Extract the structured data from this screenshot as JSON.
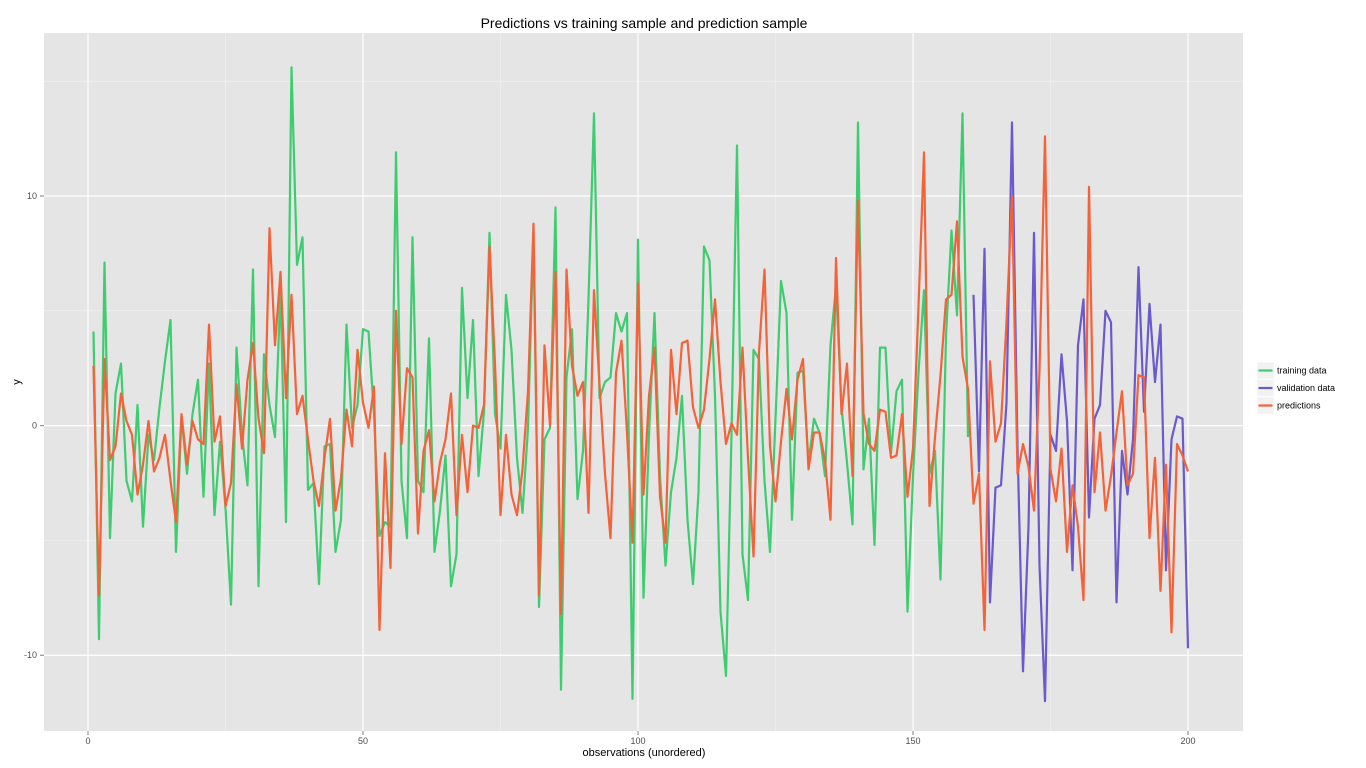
{
  "chart_data": {
    "type": "line",
    "title": "Predictions vs training sample and prediction sample",
    "xlabel": "observations (unordered)",
    "ylabel": "y",
    "xlim": [
      -8,
      210
    ],
    "ylim": [
      -13.3,
      17.1
    ],
    "x_ticks": [
      0,
      50,
      100,
      150,
      200
    ],
    "x_tick_labels": [
      "0",
      "50",
      "100",
      "150",
      "200"
    ],
    "y_ticks": [
      -10,
      0,
      10
    ],
    "y_tick_labels": [
      "-10",
      "0",
      "10"
    ],
    "grid": true,
    "legend_position": "right",
    "series": [
      {
        "name": "training data",
        "color": "#3ecc70",
        "x": [
          1,
          2,
          3,
          4,
          5,
          6,
          7,
          8,
          9,
          10,
          11,
          12,
          13,
          14,
          15,
          16,
          17,
          18,
          19,
          20,
          21,
          22,
          23,
          24,
          25,
          26,
          27,
          28,
          29,
          30,
          31,
          32,
          33,
          34,
          35,
          36,
          37,
          38,
          39,
          40,
          41,
          42,
          43,
          44,
          45,
          46,
          47,
          48,
          49,
          50,
          51,
          52,
          53,
          54,
          55,
          56,
          57,
          58,
          59,
          60,
          61,
          62,
          63,
          64,
          65,
          66,
          67,
          68,
          69,
          70,
          71,
          72,
          73,
          74,
          75,
          76,
          77,
          78,
          79,
          80,
          81,
          82,
          83,
          84,
          85,
          86,
          87,
          88,
          89,
          90,
          91,
          92,
          93,
          94,
          95,
          96,
          97,
          98,
          99,
          100,
          101,
          102,
          103,
          104,
          105,
          106,
          107,
          108,
          109,
          110,
          111,
          112,
          113,
          114,
          115,
          116,
          117,
          118,
          119,
          120,
          121,
          122,
          123,
          124,
          125,
          126,
          127,
          128,
          129,
          130,
          131,
          132,
          133,
          134,
          135,
          136,
          137,
          138,
          139,
          140,
          141,
          142,
          143,
          144,
          145,
          146,
          147,
          148,
          149,
          150,
          151,
          152,
          153,
          154,
          155,
          156,
          157,
          158,
          159,
          160
        ],
        "values": [
          4.1,
          -9.3,
          7.1,
          -4.9,
          1.4,
          2.7,
          -2.4,
          -3.3,
          0.9,
          -4.4,
          -0.4,
          -1.5,
          0.8,
          2.8,
          4.6,
          -5.5,
          0.4,
          -2.1,
          0.5,
          2.0,
          -3.1,
          2.7,
          -3.9,
          -0.7,
          -3.6,
          -7.8,
          3.4,
          -0.4,
          -2.6,
          6.8,
          -7.0,
          3.1,
          0.9,
          -0.5,
          5.9,
          -4.2,
          15.6,
          7.0,
          8.2,
          -2.8,
          -2.5,
          -6.9,
          -0.9,
          -0.8,
          -5.5,
          -4.1,
          4.4,
          -0.1,
          0.9,
          4.2,
          4.1,
          0.5,
          -4.8,
          -4.2,
          -4.4,
          11.9,
          -2.4,
          -4.9,
          8.2,
          -2.4,
          -2.9,
          3.8,
          -5.5,
          -3.7,
          -1.3,
          -7.0,
          -5.6,
          6.0,
          1.2,
          4.6,
          -2.2,
          0.6,
          8.4,
          0.5,
          -1.0,
          5.7,
          3.3,
          -1.4,
          -3.8,
          -0.1,
          8.4,
          -7.9,
          -0.6,
          -0.1,
          9.5,
          -11.5,
          2.1,
          4.2,
          -3.2,
          -1.1,
          5.5,
          13.6,
          1.2,
          1.9,
          2.1,
          4.9,
          4.1,
          4.9,
          -11.9,
          8.1,
          -7.5,
          -0.4,
          4.9,
          -2.2,
          -6.1,
          -2.9,
          -1.4,
          1.3,
          -4.1,
          -6.9,
          -2.9,
          7.8,
          7.2,
          1.3,
          -8.1,
          -10.9,
          -0.4,
          12.2,
          -5.6,
          -7.6,
          3.3,
          2.9,
          -2.4,
          -5.5,
          0.3,
          6.3,
          4.9,
          -4.1,
          2.3,
          2.4,
          -1.6,
          0.3,
          -0.3,
          -2.2,
          3.5,
          6.1,
          0.8,
          -1.6,
          -4.3,
          13.2,
          -1.9,
          0.3,
          -5.2,
          3.4,
          3.4,
          -1.2,
          1.5,
          2.0,
          -8.1,
          -2.2,
          2.3,
          5.9,
          -2.1,
          -1.1,
          -6.7,
          3.9,
          8.5,
          4.8,
          13.6,
          -0.5
        ]
      },
      {
        "name": "validation data",
        "color": "#6a5acd",
        "x": [
          161,
          162,
          163,
          164,
          165,
          166,
          167,
          168,
          169,
          170,
          171,
          172,
          173,
          174,
          175,
          176,
          177,
          178,
          179,
          180,
          181,
          182,
          183,
          184,
          185,
          186,
          187,
          188,
          189,
          190,
          191,
          192,
          193,
          194,
          195,
          196,
          197,
          198,
          199,
          200
        ],
        "values": [
          5.7,
          -2.0,
          7.7,
          -7.7,
          -2.7,
          -2.6,
          1.0,
          13.2,
          -0.9,
          -10.7,
          -4.4,
          8.4,
          -6.1,
          -12.0,
          -0.4,
          -1.1,
          3.1,
          0.2,
          -6.3,
          3.5,
          5.5,
          -4.0,
          0.3,
          0.9,
          5.0,
          4.5,
          -7.7,
          -1.1,
          -3.0,
          -0.6,
          6.9,
          0.6,
          5.3,
          1.9,
          4.4,
          -6.3,
          -0.6,
          0.4,
          0.3,
          -9.7
        ]
      },
      {
        "name": "predictions",
        "color": "#f4623a",
        "x": [
          1,
          2,
          3,
          4,
          5,
          6,
          7,
          8,
          9,
          10,
          11,
          12,
          13,
          14,
          15,
          16,
          17,
          18,
          19,
          20,
          21,
          22,
          23,
          24,
          25,
          26,
          27,
          28,
          29,
          30,
          31,
          32,
          33,
          34,
          35,
          36,
          37,
          38,
          39,
          40,
          41,
          42,
          43,
          44,
          45,
          46,
          47,
          48,
          49,
          50,
          51,
          52,
          53,
          54,
          55,
          56,
          57,
          58,
          59,
          60,
          61,
          62,
          63,
          64,
          65,
          66,
          67,
          68,
          69,
          70,
          71,
          72,
          73,
          74,
          75,
          76,
          77,
          78,
          79,
          80,
          81,
          82,
          83,
          84,
          85,
          86,
          87,
          88,
          89,
          90,
          91,
          92,
          93,
          94,
          95,
          96,
          97,
          98,
          99,
          100,
          101,
          102,
          103,
          104,
          105,
          106,
          107,
          108,
          109,
          110,
          111,
          112,
          113,
          114,
          115,
          116,
          117,
          118,
          119,
          120,
          121,
          122,
          123,
          124,
          125,
          126,
          127,
          128,
          129,
          130,
          131,
          132,
          133,
          134,
          135,
          136,
          137,
          138,
          139,
          140,
          141,
          142,
          143,
          144,
          145,
          146,
          147,
          148,
          149,
          150,
          151,
          152,
          153,
          154,
          155,
          156,
          157,
          158,
          159,
          160,
          161,
          162,
          163,
          164,
          165,
          166,
          167,
          168,
          169,
          170,
          171,
          172,
          173,
          174,
          175,
          176,
          177,
          178,
          179,
          180,
          181,
          182,
          183,
          184,
          185,
          186,
          187,
          188,
          189,
          190,
          191,
          192,
          193,
          194,
          195,
          196,
          197,
          198,
          199,
          200
        ],
        "values": [
          2.6,
          -7.4,
          2.9,
          -1.5,
          -0.9,
          1.4,
          0.2,
          -0.4,
          -3.0,
          -1.7,
          0.2,
          -2.0,
          -1.4,
          -0.4,
          -2.4,
          -4.2,
          0.5,
          -1.7,
          0.2,
          -0.6,
          -0.8,
          4.4,
          -0.7,
          0.4,
          -3.5,
          -2.5,
          1.8,
          -1.0,
          2.0,
          3.6,
          0.3,
          -1.2,
          8.6,
          3.5,
          6.7,
          1.2,
          5.7,
          0.5,
          1.3,
          -0.6,
          -2.4,
          -3.5,
          -1.4,
          0.3,
          -3.7,
          -2.3,
          0.7,
          -0.9,
          3.3,
          1.0,
          -0.1,
          1.7,
          -8.9,
          -1.2,
          -6.2,
          5.0,
          -0.8,
          2.5,
          2.1,
          -4.7,
          -1.1,
          -0.2,
          -3.3,
          -1.6,
          -0.6,
          1.4,
          -3.9,
          -0.4,
          -2.9,
          0.0,
          -0.1,
          0.9,
          7.8,
          2.7,
          -3.9,
          -0.4,
          -3.0,
          -3.9,
          -1.9,
          1.5,
          8.8,
          -7.4,
          3.5,
          0.0,
          6.7,
          -8.2,
          6.8,
          2.6,
          1.3,
          1.9,
          -3.8,
          5.9,
          1.8,
          -2.1,
          -4.9,
          2.3,
          3.7,
          -0.3,
          -5.1,
          6.2,
          -3.0,
          1.3,
          3.4,
          -3.1,
          -5.1,
          3.3,
          0.5,
          3.6,
          3.7,
          0.8,
          -0.1,
          0.7,
          2.9,
          5.5,
          1.9,
          -0.8,
          0.1,
          -0.4,
          3.4,
          -1.4,
          -5.7,
          3.2,
          6.8,
          -0.9,
          -3.3,
          -0.7,
          1.6,
          -0.6,
          2.0,
          2.9,
          -1.9,
          -0.3,
          -0.3,
          -1.5,
          -4.1,
          7.3,
          0.5,
          2.7,
          -2.2,
          9.8,
          0.5,
          -0.8,
          -1.1,
          0.7,
          0.6,
          -1.4,
          -1.3,
          0.5,
          -3.1,
          -1.0,
          5.2,
          11.9,
          -3.5,
          -0.5,
          2.2,
          5.5,
          5.7,
          8.9,
          3.0,
          1.6,
          -3.4,
          -2.1,
          -8.9,
          2.8,
          -0.7,
          0.1,
          4.5,
          10.0,
          -2.1,
          -0.8,
          -1.8,
          -3.7,
          2.4,
          12.6,
          -1.9,
          -3.3,
          -1.0,
          -5.5,
          -2.6,
          -4.4,
          -7.6,
          10.4,
          -2.9,
          -0.3,
          -3.7,
          -2.2,
          -0.3,
          1.5,
          -2.6,
          -2.1,
          2.2,
          2.1,
          -4.9,
          -1.4,
          -7.2,
          -1.7,
          -9.0,
          -0.8,
          -1.3,
          -2.0
        ]
      }
    ]
  }
}
